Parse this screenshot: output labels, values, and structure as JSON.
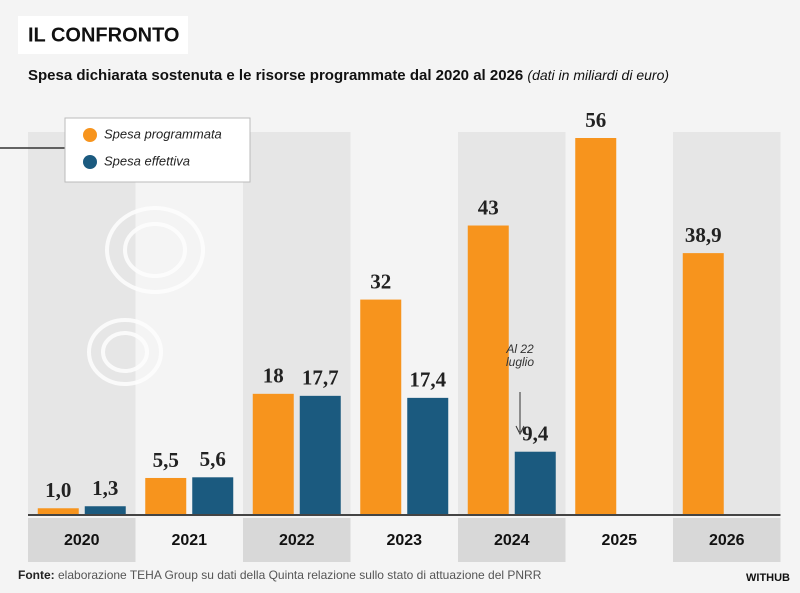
{
  "chart_data": {
    "type": "bar",
    "title": "IL CONFRONTO",
    "subtitle": "Spesa dichiarata sostenuta e le risorse programmate dal 2020 al 2026",
    "subtitle_note": "(dati in miliardi di euro)",
    "categories": [
      "2020",
      "2021",
      "2022",
      "2023",
      "2024",
      "2025",
      "2026"
    ],
    "series": [
      {
        "name": "Spesa programmata",
        "color": "#f7941d",
        "values": [
          1.0,
          5.5,
          18,
          32,
          43,
          56,
          38.9
        ],
        "value_labels": [
          "1,0",
          "5,5",
          "18",
          "32",
          "43",
          "56",
          "38,9"
        ]
      },
      {
        "name": "Spesa effettiva",
        "color": "#1b5a7f",
        "values": [
          1.3,
          5.6,
          17.7,
          17.4,
          9.4,
          null,
          null
        ],
        "value_labels": [
          "1,3",
          "5,6",
          "17,7",
          "17,4",
          "9,4",
          null,
          null
        ]
      }
    ],
    "annotation": "Al 22 luglio",
    "source_label": "Fonte:",
    "source": "elaborazione TEHA Group su dati della Quinta relazione sullo stato di attuazione del PNRR",
    "brand": "WITHUB"
  }
}
